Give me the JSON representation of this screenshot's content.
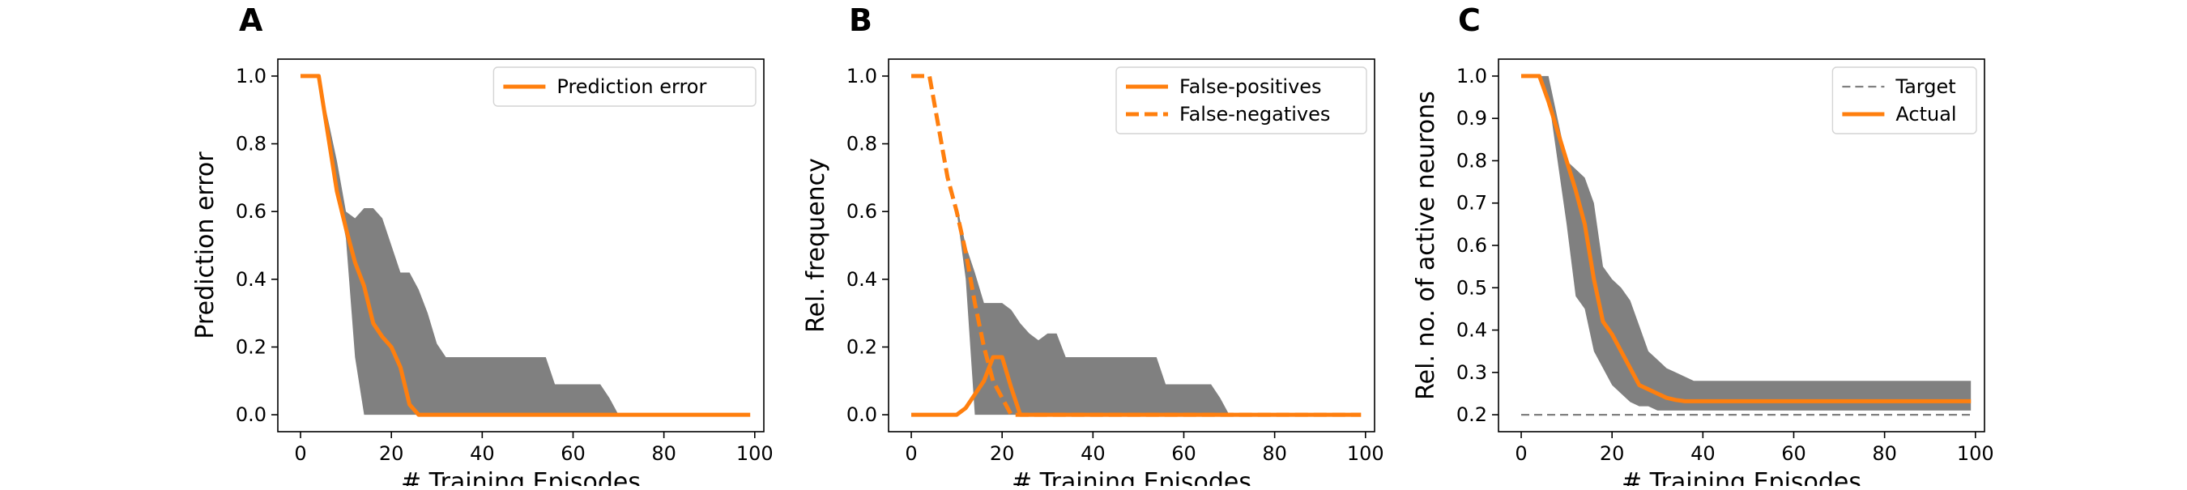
{
  "chart_data": [
    {
      "panel": "A",
      "type": "line",
      "xlabel": "# Training Episodes",
      "ylabel": "Prediction error",
      "xlim": [
        -5,
        102
      ],
      "ylim": [
        -0.05,
        1.05
      ],
      "xticks": [
        0,
        20,
        40,
        60,
        80,
        100
      ],
      "yticks": [
        0.0,
        0.2,
        0.4,
        0.6,
        0.8,
        1.0
      ],
      "ytick_labels": [
        "0.0",
        "0.2",
        "0.4",
        "0.6",
        "0.8",
        "1.0"
      ],
      "legend_position": "top-right",
      "legend": [
        {
          "label": "Prediction error",
          "style": "solid",
          "color": "#ff7f0e"
        }
      ],
      "band_color": "#808080",
      "band": {
        "x": [
          0,
          4,
          8,
          10,
          12,
          14,
          16,
          18,
          20,
          22,
          24,
          26,
          28,
          30,
          32,
          34,
          40,
          54,
          56,
          66,
          68,
          70,
          99
        ],
        "upper": [
          1.0,
          1.0,
          0.75,
          0.6,
          0.58,
          0.61,
          0.61,
          0.58,
          0.5,
          0.42,
          0.42,
          0.37,
          0.3,
          0.21,
          0.17,
          0.17,
          0.17,
          0.17,
          0.09,
          0.09,
          0.05,
          0.0,
          0.0
        ],
        "lower": [
          1.0,
          1.0,
          0.66,
          0.52,
          0.17,
          0.0,
          0.0,
          0.0,
          0.0,
          0.0,
          0.0,
          0.0,
          0.0,
          0.0,
          0.0,
          0.0,
          0.0,
          0.0,
          0.0,
          0.0,
          0.0,
          0.0,
          0.0
        ]
      },
      "series": [
        {
          "name": "Prediction error",
          "style": "solid",
          "color": "#ff7f0e",
          "x": [
            0,
            4,
            8,
            10,
            12,
            14,
            16,
            18,
            20,
            22,
            24,
            26,
            99
          ],
          "y": [
            1.0,
            1.0,
            0.66,
            0.55,
            0.45,
            0.38,
            0.27,
            0.23,
            0.2,
            0.14,
            0.03,
            0.0,
            0.0
          ]
        }
      ]
    },
    {
      "panel": "B",
      "type": "line",
      "xlabel": "# Training Episodes",
      "ylabel": "Rel. frequency",
      "xlim": [
        -5,
        102
      ],
      "ylim": [
        -0.05,
        1.05
      ],
      "xticks": [
        0,
        20,
        40,
        60,
        80,
        100
      ],
      "yticks": [
        0.0,
        0.2,
        0.4,
        0.6,
        0.8,
        1.0
      ],
      "ytick_labels": [
        "0.0",
        "0.2",
        "0.4",
        "0.6",
        "0.8",
        "1.0"
      ],
      "legend_position": "top-right",
      "legend": [
        {
          "label": "False-positives",
          "style": "solid",
          "color": "#ff7f0e"
        },
        {
          "label": "False-negatives",
          "style": "dashed",
          "color": "#ff7f0e"
        }
      ],
      "band_color": "#808080",
      "band": {
        "x": [
          10,
          12,
          14,
          16,
          18,
          20,
          22,
          24,
          26,
          28,
          30,
          32,
          34,
          40,
          54,
          56,
          66,
          68,
          70,
          99
        ],
        "upper": [
          0.62,
          0.5,
          0.42,
          0.33,
          0.33,
          0.33,
          0.31,
          0.27,
          0.24,
          0.22,
          0.24,
          0.24,
          0.17,
          0.17,
          0.17,
          0.09,
          0.09,
          0.05,
          0.0,
          0.0
        ],
        "lower": [
          0.6,
          0.4,
          0.0,
          0.0,
          0.0,
          0.0,
          0.0,
          0.0,
          0.0,
          0.0,
          0.0,
          0.0,
          0.0,
          0.0,
          0.0,
          0.0,
          0.0,
          0.0,
          0.0,
          0.0
        ]
      },
      "series": [
        {
          "name": "False-positives",
          "style": "solid",
          "color": "#ff7f0e",
          "x": [
            0,
            10,
            12,
            14,
            16,
            18,
            20,
            22,
            24,
            99
          ],
          "y": [
            0.0,
            0.0,
            0.02,
            0.06,
            0.1,
            0.17,
            0.17,
            0.08,
            0.0,
            0.0
          ]
        },
        {
          "name": "False-negatives",
          "style": "dashed",
          "color": "#ff7f0e",
          "x": [
            0,
            4,
            8,
            10,
            12,
            14,
            16,
            18,
            20,
            22,
            24,
            99
          ],
          "y": [
            1.0,
            1.0,
            0.7,
            0.6,
            0.48,
            0.33,
            0.2,
            0.1,
            0.05,
            0.0,
            0.0,
            0.0
          ]
        }
      ]
    },
    {
      "panel": "C",
      "type": "line",
      "xlabel": "# Training Episodes",
      "ylabel": "Rel. no. of active neurons",
      "xlim": [
        -5,
        102
      ],
      "ylim": [
        0.16,
        1.04
      ],
      "xticks": [
        0,
        20,
        40,
        60,
        80,
        100
      ],
      "yticks": [
        0.2,
        0.3,
        0.4,
        0.5,
        0.6,
        0.7,
        0.8,
        0.9,
        1.0
      ],
      "ytick_labels": [
        "0.2",
        "0.3",
        "0.4",
        "0.5",
        "0.6",
        "0.7",
        "0.8",
        "0.9",
        "1.0"
      ],
      "legend_position": "top-right",
      "legend": [
        {
          "label": "Target",
          "style": "dashed",
          "color": "#808080"
        },
        {
          "label": "Actual",
          "style": "solid",
          "color": "#ff7f0e"
        }
      ],
      "band_color": "#808080",
      "band": {
        "x": [
          4,
          6,
          8,
          10,
          12,
          14,
          16,
          18,
          20,
          22,
          24,
          26,
          28,
          30,
          32,
          34,
          36,
          38,
          40,
          99
        ],
        "upper": [
          1.0,
          1.0,
          0.9,
          0.8,
          0.78,
          0.76,
          0.7,
          0.55,
          0.52,
          0.5,
          0.47,
          0.41,
          0.35,
          0.33,
          0.31,
          0.3,
          0.29,
          0.28,
          0.28,
          0.28
        ],
        "lower": [
          1.0,
          0.95,
          0.8,
          0.65,
          0.48,
          0.45,
          0.35,
          0.31,
          0.27,
          0.25,
          0.23,
          0.22,
          0.22,
          0.21,
          0.21,
          0.21,
          0.21,
          0.21,
          0.21,
          0.21
        ]
      },
      "series": [
        {
          "name": "Target",
          "style": "dashed",
          "color": "#808080",
          "x": [
            0,
            99
          ],
          "y": [
            0.2,
            0.2
          ]
        },
        {
          "name": "Actual",
          "style": "solid",
          "color": "#ff7f0e",
          "x": [
            0,
            4,
            6,
            8,
            10,
            12,
            14,
            16,
            18,
            20,
            22,
            24,
            26,
            28,
            30,
            32,
            34,
            36,
            38,
            40,
            99
          ],
          "y": [
            1.0,
            1.0,
            0.94,
            0.87,
            0.8,
            0.73,
            0.65,
            0.52,
            0.42,
            0.39,
            0.35,
            0.31,
            0.27,
            0.26,
            0.25,
            0.24,
            0.235,
            0.232,
            0.232,
            0.232,
            0.232
          ]
        }
      ]
    }
  ]
}
